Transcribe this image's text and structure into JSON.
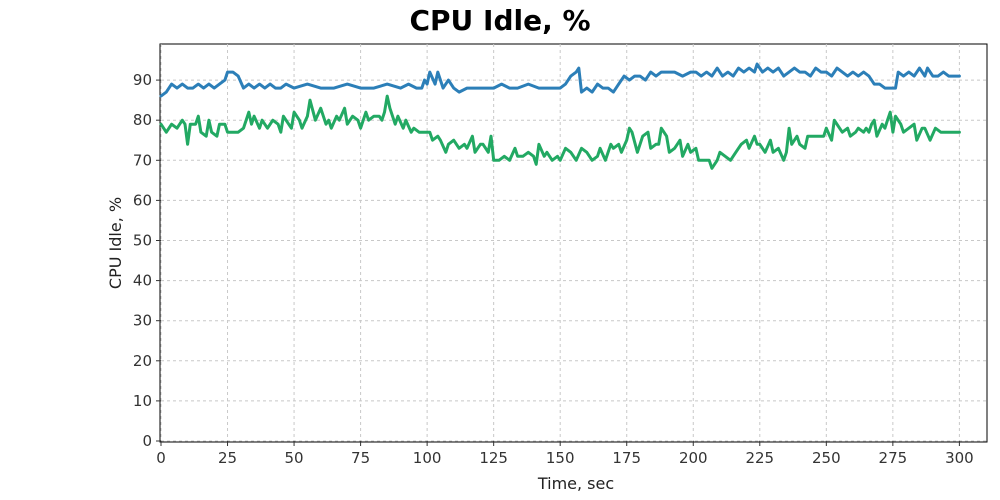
{
  "chart_data": {
    "type": "line",
    "title": "CPU Idle, %",
    "xlabel": "Time, sec",
    "ylabel": "CPU Idle, %",
    "xlim": [
      0,
      310
    ],
    "ylim": [
      0,
      99
    ],
    "xticks": [
      0,
      25,
      50,
      75,
      100,
      125,
      150,
      175,
      200,
      225,
      250,
      275,
      300
    ],
    "yticks": [
      0,
      10,
      20,
      30,
      40,
      50,
      60,
      70,
      80,
      90
    ],
    "grid": true,
    "legend": "none",
    "series": [
      {
        "color": "#2c7fb8",
        "points": [
          [
            0,
            86
          ],
          [
            2,
            87
          ],
          [
            4,
            89
          ],
          [
            6,
            88
          ],
          [
            8,
            89
          ],
          [
            10,
            88
          ],
          [
            12,
            88
          ],
          [
            14,
            89
          ],
          [
            16,
            88
          ],
          [
            18,
            89
          ],
          [
            20,
            88
          ],
          [
            22,
            89
          ],
          [
            24,
            90
          ],
          [
            25,
            92
          ],
          [
            27,
            92
          ],
          [
            29,
            91
          ],
          [
            31,
            88
          ],
          [
            33,
            89
          ],
          [
            35,
            88
          ],
          [
            37,
            89
          ],
          [
            39,
            88
          ],
          [
            41,
            89
          ],
          [
            43,
            88
          ],
          [
            45,
            88
          ],
          [
            47,
            89
          ],
          [
            50,
            88
          ],
          [
            55,
            89
          ],
          [
            60,
            88
          ],
          [
            65,
            88
          ],
          [
            70,
            89
          ],
          [
            75,
            88
          ],
          [
            80,
            88
          ],
          [
            85,
            89
          ],
          [
            90,
            88
          ],
          [
            93,
            89
          ],
          [
            96,
            88
          ],
          [
            98,
            88
          ],
          [
            99,
            90
          ],
          [
            100,
            89
          ],
          [
            101,
            92
          ],
          [
            103,
            89
          ],
          [
            104,
            92
          ],
          [
            106,
            88
          ],
          [
            108,
            90
          ],
          [
            110,
            88
          ],
          [
            112,
            87
          ],
          [
            115,
            88
          ],
          [
            120,
            88
          ],
          [
            125,
            88
          ],
          [
            128,
            89
          ],
          [
            131,
            88
          ],
          [
            134,
            88
          ],
          [
            138,
            89
          ],
          [
            142,
            88
          ],
          [
            146,
            88
          ],
          [
            150,
            88
          ],
          [
            152,
            89
          ],
          [
            154,
            91
          ],
          [
            156,
            92
          ],
          [
            157,
            93
          ],
          [
            158,
            87
          ],
          [
            160,
            88
          ],
          [
            162,
            87
          ],
          [
            164,
            89
          ],
          [
            166,
            88
          ],
          [
            168,
            88
          ],
          [
            170,
            87
          ],
          [
            172,
            89
          ],
          [
            174,
            91
          ],
          [
            176,
            90
          ],
          [
            178,
            91
          ],
          [
            180,
            91
          ],
          [
            182,
            90
          ],
          [
            184,
            92
          ],
          [
            186,
            91
          ],
          [
            188,
            92
          ],
          [
            190,
            92
          ],
          [
            193,
            92
          ],
          [
            196,
            91
          ],
          [
            199,
            92
          ],
          [
            201,
            92
          ],
          [
            203,
            91
          ],
          [
            205,
            92
          ],
          [
            207,
            91
          ],
          [
            209,
            93
          ],
          [
            211,
            91
          ],
          [
            213,
            92
          ],
          [
            215,
            91
          ],
          [
            217,
            93
          ],
          [
            219,
            92
          ],
          [
            221,
            93
          ],
          [
            223,
            92
          ],
          [
            224,
            94
          ],
          [
            226,
            92
          ],
          [
            228,
            93
          ],
          [
            230,
            92
          ],
          [
            232,
            93
          ],
          [
            234,
            91
          ],
          [
            236,
            92
          ],
          [
            238,
            93
          ],
          [
            240,
            92
          ],
          [
            242,
            92
          ],
          [
            244,
            91
          ],
          [
            246,
            93
          ],
          [
            248,
            92
          ],
          [
            250,
            92
          ],
          [
            252,
            91
          ],
          [
            254,
            93
          ],
          [
            256,
            92
          ],
          [
            258,
            91
          ],
          [
            260,
            92
          ],
          [
            262,
            91
          ],
          [
            264,
            92
          ],
          [
            266,
            91
          ],
          [
            268,
            89
          ],
          [
            270,
            89
          ],
          [
            272,
            88
          ],
          [
            274,
            88
          ],
          [
            276,
            88
          ],
          [
            277,
            92
          ],
          [
            279,
            91
          ],
          [
            281,
            92
          ],
          [
            283,
            91
          ],
          [
            285,
            93
          ],
          [
            287,
            91
          ],
          [
            288,
            93
          ],
          [
            290,
            91
          ],
          [
            292,
            91
          ],
          [
            294,
            92
          ],
          [
            296,
            91
          ],
          [
            298,
            91
          ],
          [
            300,
            91
          ]
        ]
      },
      {
        "color": "#22a963",
        "points": [
          [
            0,
            79
          ],
          [
            2,
            77
          ],
          [
            4,
            79
          ],
          [
            6,
            78
          ],
          [
            8,
            80
          ],
          [
            9,
            79
          ],
          [
            10,
            74
          ],
          [
            11,
            79
          ],
          [
            13,
            79
          ],
          [
            14,
            81
          ],
          [
            15,
            77
          ],
          [
            17,
            76
          ],
          [
            18,
            80
          ],
          [
            19,
            77
          ],
          [
            21,
            76
          ],
          [
            22,
            79
          ],
          [
            24,
            79
          ],
          [
            25,
            77
          ],
          [
            27,
            77
          ],
          [
            29,
            77
          ],
          [
            31,
            78
          ],
          [
            33,
            82
          ],
          [
            34,
            79
          ],
          [
            35,
            81
          ],
          [
            37,
            78
          ],
          [
            38,
            80
          ],
          [
            40,
            78
          ],
          [
            42,
            80
          ],
          [
            44,
            79
          ],
          [
            45,
            77
          ],
          [
            46,
            81
          ],
          [
            48,
            79
          ],
          [
            49,
            78
          ],
          [
            50,
            82
          ],
          [
            52,
            80
          ],
          [
            53,
            78
          ],
          [
            55,
            81
          ],
          [
            56,
            85
          ],
          [
            58,
            80
          ],
          [
            60,
            83
          ],
          [
            62,
            79
          ],
          [
            63,
            80
          ],
          [
            64,
            78
          ],
          [
            66,
            81
          ],
          [
            67,
            80
          ],
          [
            69,
            83
          ],
          [
            70,
            79
          ],
          [
            72,
            81
          ],
          [
            74,
            80
          ],
          [
            75,
            78
          ],
          [
            77,
            82
          ],
          [
            78,
            80
          ],
          [
            80,
            81
          ],
          [
            82,
            81
          ],
          [
            83,
            80
          ],
          [
            84,
            82
          ],
          [
            85,
            86
          ],
          [
            86,
            83
          ],
          [
            88,
            79
          ],
          [
            89,
            81
          ],
          [
            91,
            78
          ],
          [
            92,
            80
          ],
          [
            94,
            77
          ],
          [
            95,
            78
          ],
          [
            97,
            77
          ],
          [
            99,
            77
          ],
          [
            101,
            77
          ],
          [
            102,
            75
          ],
          [
            104,
            76
          ],
          [
            105,
            75
          ],
          [
            107,
            72
          ],
          [
            108,
            74
          ],
          [
            110,
            75
          ],
          [
            112,
            73
          ],
          [
            114,
            74
          ],
          [
            115,
            73
          ],
          [
            117,
            76
          ],
          [
            118,
            72
          ],
          [
            120,
            74
          ],
          [
            121,
            74
          ],
          [
            123,
            72
          ],
          [
            124,
            76
          ],
          [
            125,
            70
          ],
          [
            127,
            70
          ],
          [
            129,
            71
          ],
          [
            131,
            70
          ],
          [
            133,
            73
          ],
          [
            134,
            71
          ],
          [
            136,
            71
          ],
          [
            138,
            72
          ],
          [
            140,
            71
          ],
          [
            141,
            69
          ],
          [
            142,
            74
          ],
          [
            144,
            71
          ],
          [
            145,
            72
          ],
          [
            147,
            70
          ],
          [
            149,
            71
          ],
          [
            150,
            70
          ],
          [
            152,
            73
          ],
          [
            154,
            72
          ],
          [
            156,
            70
          ],
          [
            158,
            73
          ],
          [
            160,
            72
          ],
          [
            162,
            70
          ],
          [
            164,
            71
          ],
          [
            165,
            73
          ],
          [
            167,
            70
          ],
          [
            169,
            74
          ],
          [
            170,
            73
          ],
          [
            172,
            74
          ],
          [
            173,
            72
          ],
          [
            175,
            75
          ],
          [
            176,
            78
          ],
          [
            177,
            77
          ],
          [
            179,
            72
          ],
          [
            181,
            76
          ],
          [
            183,
            77
          ],
          [
            184,
            73
          ],
          [
            186,
            74
          ],
          [
            187,
            74
          ],
          [
            188,
            78
          ],
          [
            190,
            76
          ],
          [
            191,
            72
          ],
          [
            193,
            73
          ],
          [
            195,
            75
          ],
          [
            196,
            71
          ],
          [
            198,
            74
          ],
          [
            199,
            72
          ],
          [
            201,
            73
          ],
          [
            202,
            70
          ],
          [
            204,
            70
          ],
          [
            206,
            70
          ],
          [
            207,
            68
          ],
          [
            209,
            70
          ],
          [
            210,
            72
          ],
          [
            212,
            71
          ],
          [
            214,
            70
          ],
          [
            216,
            72
          ],
          [
            218,
            74
          ],
          [
            220,
            75
          ],
          [
            221,
            73
          ],
          [
            223,
            76
          ],
          [
            224,
            74
          ],
          [
            225,
            74
          ],
          [
            227,
            72
          ],
          [
            229,
            75
          ],
          [
            230,
            72
          ],
          [
            232,
            73
          ],
          [
            234,
            70
          ],
          [
            235,
            72
          ],
          [
            236,
            78
          ],
          [
            237,
            74
          ],
          [
            239,
            76
          ],
          [
            240,
            74
          ],
          [
            242,
            73
          ],
          [
            243,
            76
          ],
          [
            245,
            76
          ],
          [
            247,
            76
          ],
          [
            249,
            76
          ],
          [
            250,
            78
          ],
          [
            252,
            75
          ],
          [
            253,
            80
          ],
          [
            255,
            78
          ],
          [
            256,
            77
          ],
          [
            258,
            78
          ],
          [
            259,
            76
          ],
          [
            261,
            77
          ],
          [
            262,
            78
          ],
          [
            264,
            77
          ],
          [
            265,
            78
          ],
          [
            266,
            77
          ],
          [
            267,
            79
          ],
          [
            268,
            80
          ],
          [
            269,
            76
          ],
          [
            271,
            79
          ],
          [
            272,
            78
          ],
          [
            273,
            80
          ],
          [
            274,
            82
          ],
          [
            275,
            77
          ],
          [
            276,
            81
          ],
          [
            278,
            79
          ],
          [
            279,
            77
          ],
          [
            281,
            78
          ],
          [
            283,
            79
          ],
          [
            284,
            75
          ],
          [
            286,
            78
          ],
          [
            287,
            78
          ],
          [
            289,
            75
          ],
          [
            291,
            78
          ],
          [
            293,
            77
          ],
          [
            295,
            77
          ],
          [
            297,
            77
          ],
          [
            300,
            77
          ]
        ]
      }
    ]
  }
}
